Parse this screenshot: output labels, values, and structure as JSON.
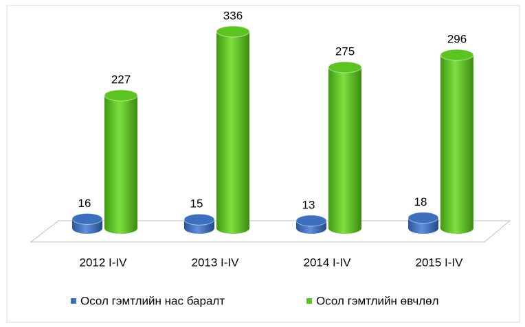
{
  "chart_data": {
    "type": "bar3d",
    "categories": [
      "2012 I-IV",
      "2013 I-IV",
      "2014 I-IV",
      "2015 I-IV"
    ],
    "series": [
      {
        "name": "Осол гэмтлийн нас баралт",
        "color": "#3d6fbf",
        "values": [
          16,
          15,
          13,
          18
        ]
      },
      {
        "name": "Осол гэмтлийн өвчлөл",
        "color": "#5cc41e",
        "values": [
          227,
          336,
          275,
          296
        ]
      }
    ],
    "legend": "bottom"
  }
}
